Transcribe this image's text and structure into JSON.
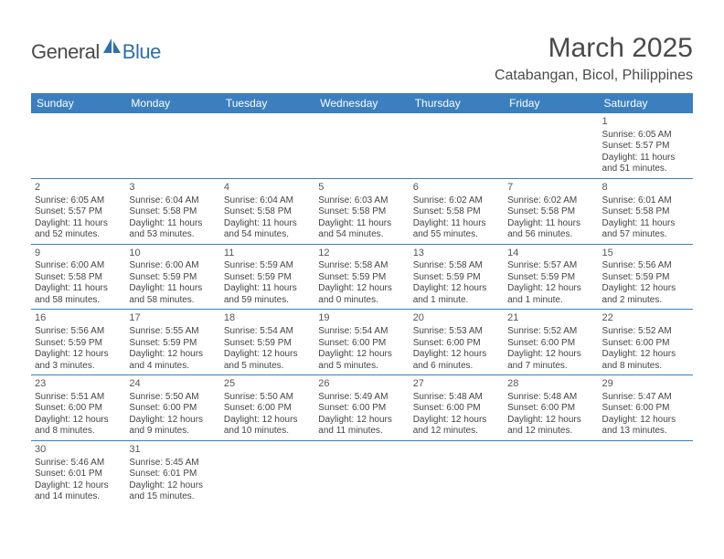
{
  "brand": {
    "part1": "General",
    "part2": "Blue"
  },
  "title": "March 2025",
  "location": "Catabangan, Bicol, Philippines",
  "colors": {
    "header_bg": "#3b7fbf",
    "header_fg": "#ffffff",
    "text": "#4a4a4a",
    "brand_blue": "#2f6fab",
    "rule": "#3b7fbf"
  },
  "weekdays": [
    "Sunday",
    "Monday",
    "Tuesday",
    "Wednesday",
    "Thursday",
    "Friday",
    "Saturday"
  ],
  "weeks": [
    [
      null,
      null,
      null,
      null,
      null,
      null,
      {
        "n": "1",
        "sr": "Sunrise: 6:05 AM",
        "ss": "Sunset: 5:57 PM",
        "dl": "Daylight: 11 hours and 51 minutes."
      }
    ],
    [
      {
        "n": "2",
        "sr": "Sunrise: 6:05 AM",
        "ss": "Sunset: 5:57 PM",
        "dl": "Daylight: 11 hours and 52 minutes."
      },
      {
        "n": "3",
        "sr": "Sunrise: 6:04 AM",
        "ss": "Sunset: 5:58 PM",
        "dl": "Daylight: 11 hours and 53 minutes."
      },
      {
        "n": "4",
        "sr": "Sunrise: 6:04 AM",
        "ss": "Sunset: 5:58 PM",
        "dl": "Daylight: 11 hours and 54 minutes."
      },
      {
        "n": "5",
        "sr": "Sunrise: 6:03 AM",
        "ss": "Sunset: 5:58 PM",
        "dl": "Daylight: 11 hours and 54 minutes."
      },
      {
        "n": "6",
        "sr": "Sunrise: 6:02 AM",
        "ss": "Sunset: 5:58 PM",
        "dl": "Daylight: 11 hours and 55 minutes."
      },
      {
        "n": "7",
        "sr": "Sunrise: 6:02 AM",
        "ss": "Sunset: 5:58 PM",
        "dl": "Daylight: 11 hours and 56 minutes."
      },
      {
        "n": "8",
        "sr": "Sunrise: 6:01 AM",
        "ss": "Sunset: 5:58 PM",
        "dl": "Daylight: 11 hours and 57 minutes."
      }
    ],
    [
      {
        "n": "9",
        "sr": "Sunrise: 6:00 AM",
        "ss": "Sunset: 5:58 PM",
        "dl": "Daylight: 11 hours and 58 minutes."
      },
      {
        "n": "10",
        "sr": "Sunrise: 6:00 AM",
        "ss": "Sunset: 5:59 PM",
        "dl": "Daylight: 11 hours and 58 minutes."
      },
      {
        "n": "11",
        "sr": "Sunrise: 5:59 AM",
        "ss": "Sunset: 5:59 PM",
        "dl": "Daylight: 11 hours and 59 minutes."
      },
      {
        "n": "12",
        "sr": "Sunrise: 5:58 AM",
        "ss": "Sunset: 5:59 PM",
        "dl": "Daylight: 12 hours and 0 minutes."
      },
      {
        "n": "13",
        "sr": "Sunrise: 5:58 AM",
        "ss": "Sunset: 5:59 PM",
        "dl": "Daylight: 12 hours and 1 minute."
      },
      {
        "n": "14",
        "sr": "Sunrise: 5:57 AM",
        "ss": "Sunset: 5:59 PM",
        "dl": "Daylight: 12 hours and 1 minute."
      },
      {
        "n": "15",
        "sr": "Sunrise: 5:56 AM",
        "ss": "Sunset: 5:59 PM",
        "dl": "Daylight: 12 hours and 2 minutes."
      }
    ],
    [
      {
        "n": "16",
        "sr": "Sunrise: 5:56 AM",
        "ss": "Sunset: 5:59 PM",
        "dl": "Daylight: 12 hours and 3 minutes."
      },
      {
        "n": "17",
        "sr": "Sunrise: 5:55 AM",
        "ss": "Sunset: 5:59 PM",
        "dl": "Daylight: 12 hours and 4 minutes."
      },
      {
        "n": "18",
        "sr": "Sunrise: 5:54 AM",
        "ss": "Sunset: 5:59 PM",
        "dl": "Daylight: 12 hours and 5 minutes."
      },
      {
        "n": "19",
        "sr": "Sunrise: 5:54 AM",
        "ss": "Sunset: 6:00 PM",
        "dl": "Daylight: 12 hours and 5 minutes."
      },
      {
        "n": "20",
        "sr": "Sunrise: 5:53 AM",
        "ss": "Sunset: 6:00 PM",
        "dl": "Daylight: 12 hours and 6 minutes."
      },
      {
        "n": "21",
        "sr": "Sunrise: 5:52 AM",
        "ss": "Sunset: 6:00 PM",
        "dl": "Daylight: 12 hours and 7 minutes."
      },
      {
        "n": "22",
        "sr": "Sunrise: 5:52 AM",
        "ss": "Sunset: 6:00 PM",
        "dl": "Daylight: 12 hours and 8 minutes."
      }
    ],
    [
      {
        "n": "23",
        "sr": "Sunrise: 5:51 AM",
        "ss": "Sunset: 6:00 PM",
        "dl": "Daylight: 12 hours and 8 minutes."
      },
      {
        "n": "24",
        "sr": "Sunrise: 5:50 AM",
        "ss": "Sunset: 6:00 PM",
        "dl": "Daylight: 12 hours and 9 minutes."
      },
      {
        "n": "25",
        "sr": "Sunrise: 5:50 AM",
        "ss": "Sunset: 6:00 PM",
        "dl": "Daylight: 12 hours and 10 minutes."
      },
      {
        "n": "26",
        "sr": "Sunrise: 5:49 AM",
        "ss": "Sunset: 6:00 PM",
        "dl": "Daylight: 12 hours and 11 minutes."
      },
      {
        "n": "27",
        "sr": "Sunrise: 5:48 AM",
        "ss": "Sunset: 6:00 PM",
        "dl": "Daylight: 12 hours and 12 minutes."
      },
      {
        "n": "28",
        "sr": "Sunrise: 5:48 AM",
        "ss": "Sunset: 6:00 PM",
        "dl": "Daylight: 12 hours and 12 minutes."
      },
      {
        "n": "29",
        "sr": "Sunrise: 5:47 AM",
        "ss": "Sunset: 6:00 PM",
        "dl": "Daylight: 12 hours and 13 minutes."
      }
    ],
    [
      {
        "n": "30",
        "sr": "Sunrise: 5:46 AM",
        "ss": "Sunset: 6:01 PM",
        "dl": "Daylight: 12 hours and 14 minutes."
      },
      {
        "n": "31",
        "sr": "Sunrise: 5:45 AM",
        "ss": "Sunset: 6:01 PM",
        "dl": "Daylight: 12 hours and 15 minutes."
      },
      null,
      null,
      null,
      null,
      null
    ]
  ]
}
